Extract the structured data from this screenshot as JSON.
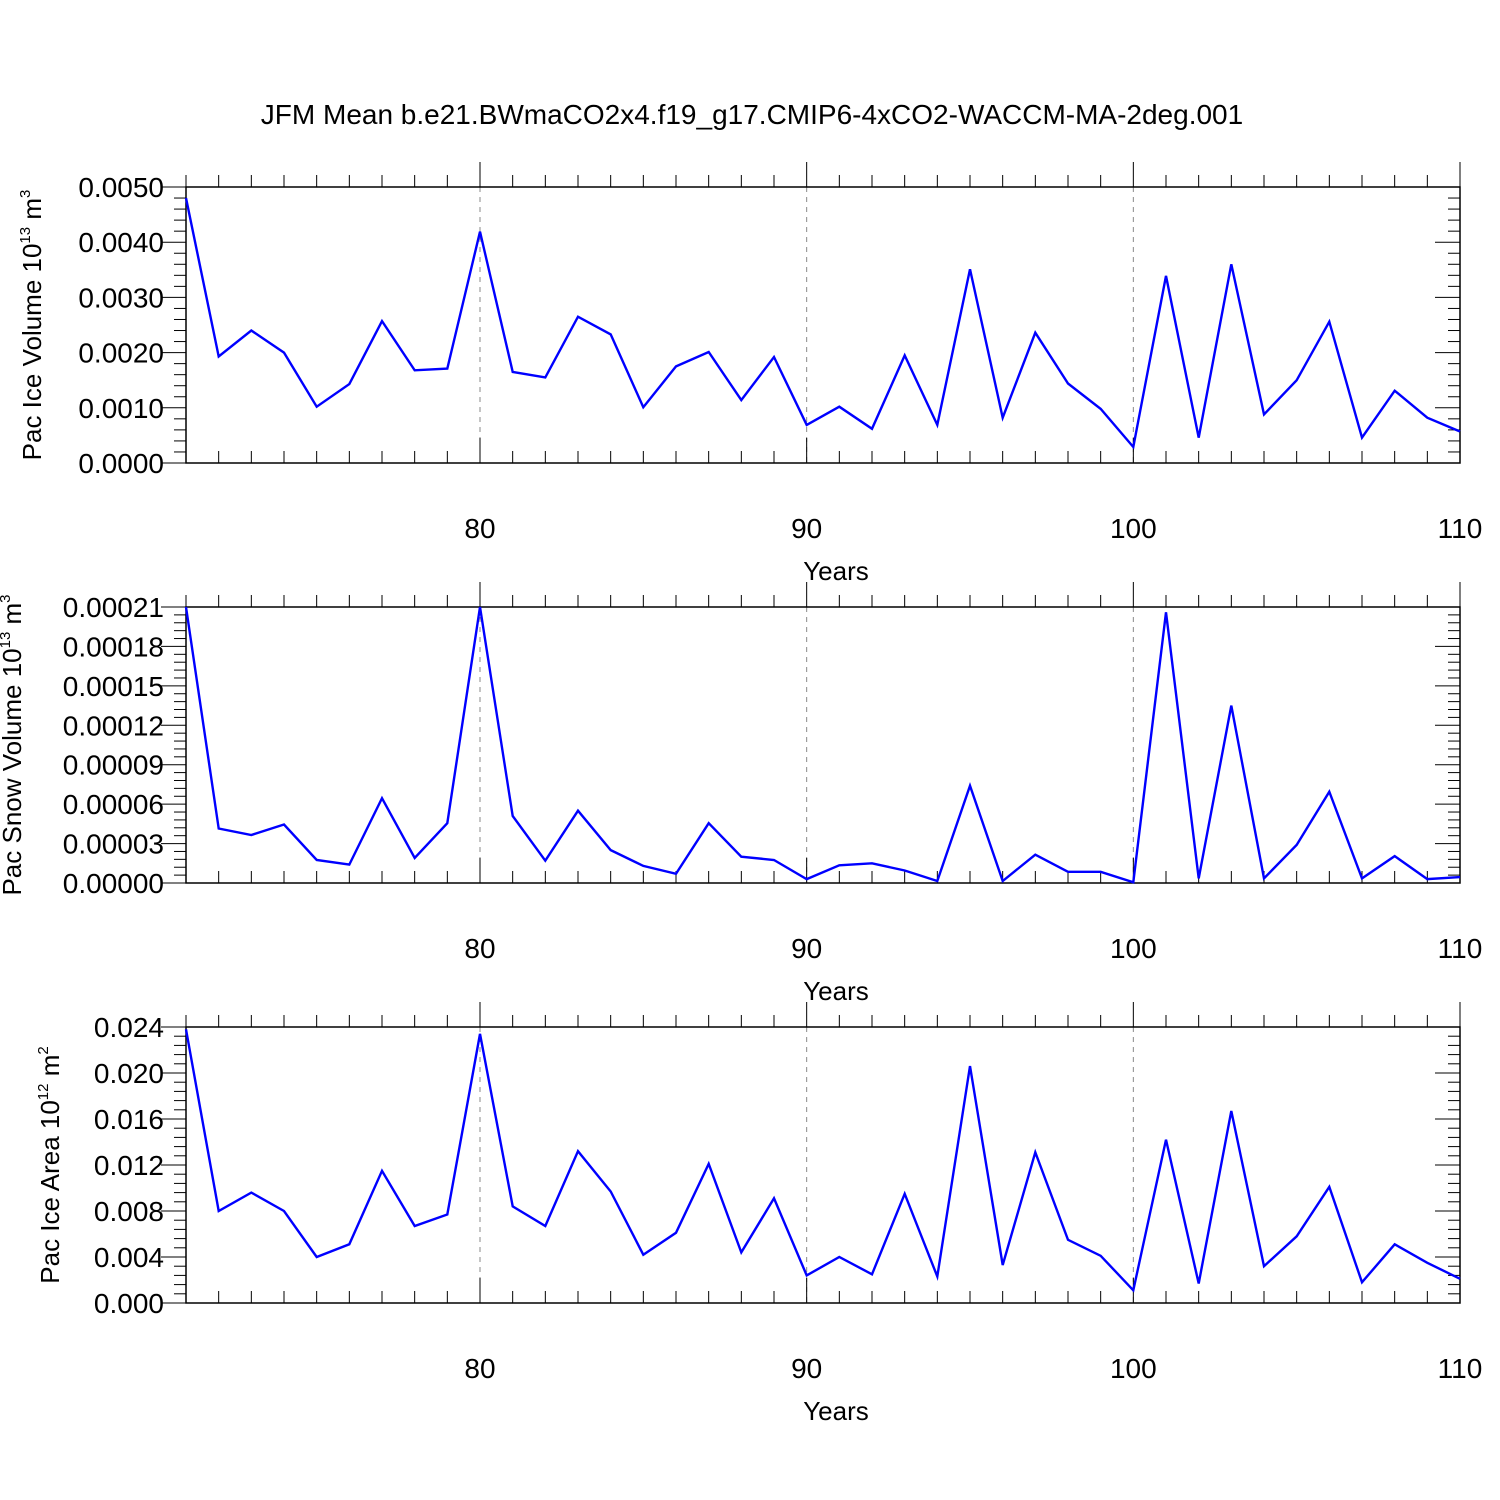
{
  "title": "JFM Mean b.e21.BWmaCO2x4.f19_g17.CMIP6-4xCO2-WACCM-MA-2deg.001",
  "colors": {
    "line": "#0000ff",
    "axis": "#000000",
    "grid": "#888888"
  },
  "chart_data": [
    {
      "type": "line",
      "ylabel": {
        "text": "Pac Ice Volume 10",
        "exp": "13",
        "unit": " m",
        "unit_exp": "3"
      },
      "xlabel": "Years",
      "xlim": [
        71,
        110
      ],
      "ylim": [
        0,
        0.005
      ],
      "xticks": [
        80,
        90,
        100,
        110
      ],
      "yticks": [
        "0.0000",
        "0.0010",
        "0.0020",
        "0.0030",
        "0.0040",
        "0.0050"
      ],
      "grid": "vertical dashed at major x ticks",
      "x": [
        71,
        72,
        73,
        74,
        75,
        76,
        77,
        78,
        79,
        80,
        81,
        82,
        83,
        84,
        85,
        86,
        87,
        88,
        89,
        90,
        91,
        92,
        93,
        94,
        95,
        96,
        97,
        98,
        99,
        100,
        101,
        102,
        103,
        104,
        105,
        106,
        107,
        108,
        109,
        110
      ],
      "values": [
        0.0048,
        0.00193,
        0.0024,
        0.002,
        0.00102,
        0.00143,
        0.00257,
        0.00168,
        0.00171,
        0.00419,
        0.00165,
        0.00155,
        0.00265,
        0.00233,
        0.00101,
        0.00175,
        0.00201,
        0.00114,
        0.00192,
        0.00069,
        0.00102,
        0.00062,
        0.00195,
        0.00069,
        0.00351,
        0.00082,
        0.00236,
        0.00144,
        0.00098,
        0.00029,
        0.00339,
        0.00046,
        0.0036,
        0.00088,
        0.0015,
        0.00256,
        0.00046,
        0.00131,
        0.00082,
        0.00057
      ]
    },
    {
      "type": "line",
      "ylabel": {
        "text": "Pac Snow Volume 10",
        "exp": "13",
        "unit": " m",
        "unit_exp": "3"
      },
      "xlabel": "Years",
      "xlim": [
        71,
        110
      ],
      "ylim": [
        0,
        0.00021
      ],
      "xticks": [
        80,
        90,
        100,
        110
      ],
      "yticks": [
        "0.00000",
        "0.00003",
        "0.00006",
        "0.00009",
        "0.00012",
        "0.00015",
        "0.00018",
        "0.00021"
      ],
      "grid": "vertical dashed at major x ticks",
      "x": [
        71,
        72,
        73,
        74,
        75,
        76,
        77,
        78,
        79,
        80,
        81,
        82,
        83,
        84,
        85,
        86,
        87,
        88,
        89,
        90,
        91,
        92,
        93,
        94,
        95,
        96,
        97,
        98,
        99,
        100,
        101,
        102,
        103,
        104,
        105,
        106,
        107,
        108,
        109,
        110
      ],
      "values": [
        0.00021,
        4.15e-05,
        3.65e-05,
        4.45e-05,
        1.75e-05,
        1.4e-05,
        6.45e-05,
        1.9e-05,
        4.55e-05,
        0.00021,
        5.1e-05,
        1.7e-05,
        5.5e-05,
        2.5e-05,
        1.3e-05,
        7e-06,
        4.55e-05,
        2e-05,
        1.75e-05,
        3e-06,
        1.35e-05,
        1.5e-05,
        9.5e-06,
        1.5e-06,
        7.4e-05,
        1.5e-06,
        2.15e-05,
        8.5e-06,
        8.5e-06,
        5e-07,
        0.000206,
        3.5e-06,
        0.000135,
        3.5e-06,
        2.9e-05,
        6.95e-05,
        3.5e-06,
        2.05e-05,
        3e-06,
        4.5e-06
      ]
    },
    {
      "type": "line",
      "ylabel": {
        "text": "Pac Ice Area 10",
        "exp": "12",
        "unit": " m",
        "unit_exp": "2"
      },
      "xlabel": "Years",
      "xlim": [
        71,
        110
      ],
      "ylim": [
        0,
        0.024
      ],
      "xticks": [
        80,
        90,
        100,
        110
      ],
      "yticks": [
        "0.000",
        "0.004",
        "0.008",
        "0.012",
        "0.016",
        "0.020",
        "0.024"
      ],
      "grid": "vertical dashed at major x ticks",
      "x": [
        71,
        72,
        73,
        74,
        75,
        76,
        77,
        78,
        79,
        80,
        81,
        82,
        83,
        84,
        85,
        86,
        87,
        88,
        89,
        90,
        91,
        92,
        93,
        94,
        95,
        96,
        97,
        98,
        99,
        100,
        101,
        102,
        103,
        104,
        105,
        106,
        107,
        108,
        109,
        110
      ],
      "values": [
        0.0238,
        0.008,
        0.0096,
        0.008,
        0.004,
        0.0051,
        0.0115,
        0.0067,
        0.0077,
        0.0234,
        0.0084,
        0.0067,
        0.0132,
        0.0097,
        0.0042,
        0.0061,
        0.0121,
        0.0044,
        0.0091,
        0.0024,
        0.004,
        0.0025,
        0.0095,
        0.0023,
        0.0206,
        0.0033,
        0.0131,
        0.0055,
        0.0041,
        0.0011,
        0.0142,
        0.0017,
        0.0167,
        0.0032,
        0.0058,
        0.0101,
        0.0018,
        0.0051,
        0.0035,
        0.0021
      ]
    }
  ]
}
